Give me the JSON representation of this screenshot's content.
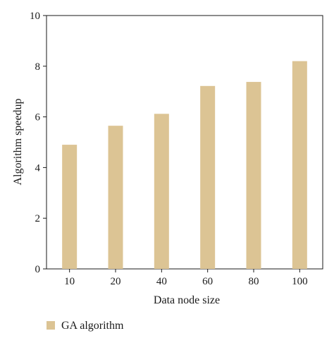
{
  "chart_data": {
    "type": "bar",
    "categories": [
      "10",
      "20",
      "40",
      "60",
      "80",
      "100"
    ],
    "series": [
      {
        "name": "GA algorithm",
        "values": [
          4.9,
          5.65,
          6.12,
          7.22,
          7.38,
          8.2
        ]
      }
    ],
    "xlabel": "Data node size",
    "ylabel": "Algorithm speedup",
    "ylim": [
      0,
      10
    ],
    "yticks": [
      0,
      2,
      4,
      6,
      8,
      10
    ],
    "grid": false,
    "legend_position": "bottom-left",
    "colors": {
      "bar": "#dcc494",
      "axis": "#1a1a1a"
    }
  }
}
